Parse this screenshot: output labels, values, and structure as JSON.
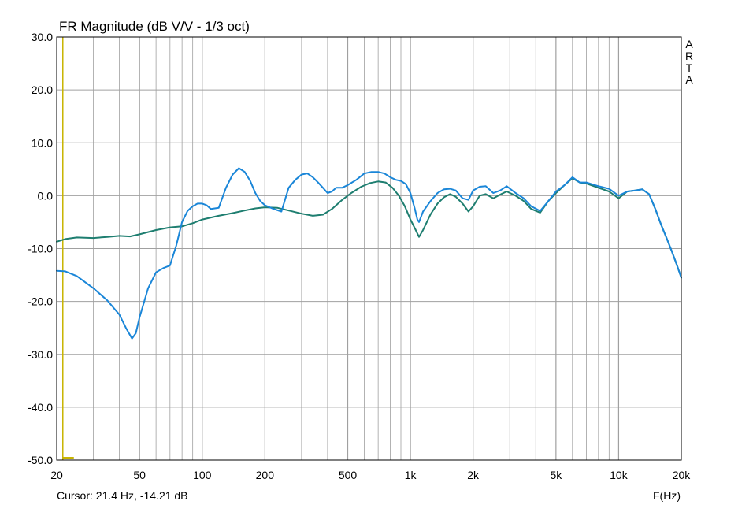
{
  "chart_data": {
    "type": "line",
    "title": "FR Magnitude (dB V/V - 1/3 oct)",
    "xlabel": "F(Hz)",
    "ylabel": "",
    "x_scale": "log",
    "xlim": [
      20,
      20000
    ],
    "ylim": [
      -50,
      30
    ],
    "x_ticks": [
      20,
      50,
      100,
      200,
      500,
      1000,
      2000,
      5000,
      10000,
      20000
    ],
    "x_tick_labels": [
      "20",
      "50",
      "100",
      "200",
      "500",
      "1k",
      "2k",
      "5k",
      "10k",
      "20k"
    ],
    "y_ticks": [
      30,
      20,
      10,
      0,
      -10,
      -20,
      -30,
      -40,
      -50
    ],
    "y_tick_labels": [
      "30.0",
      "20.0",
      "10.0",
      "0.0",
      "-10.0",
      "-20.0",
      "-30.0",
      "-40.0",
      "-50.0"
    ],
    "grid": true,
    "brand_letters": [
      "A",
      "R",
      "T",
      "A"
    ],
    "cursor_text": "Cursor: 21.4 Hz, -14.21 dB",
    "cursor_frequency": 21.4,
    "colors": {
      "grid": "#a0a0a0",
      "cursor": "#c8b400",
      "axis": "#000000"
    },
    "series": [
      {
        "color": "#1e7e70",
        "x": [
          20,
          22,
          25,
          30,
          35,
          40,
          45,
          50,
          60,
          70,
          80,
          90,
          100,
          120,
          140,
          160,
          180,
          200,
          230,
          260,
          300,
          340,
          380,
          420,
          470,
          520,
          580,
          640,
          700,
          760,
          820,
          880,
          940,
          1000,
          1060,
          1100,
          1150,
          1250,
          1350,
          1450,
          1550,
          1650,
          1780,
          1900,
          2000,
          2150,
          2300,
          2500,
          2700,
          2900,
          3200,
          3500,
          3800,
          4200,
          4600,
          5000,
          5500,
          6000,
          6500,
          7000,
          8000,
          9000,
          10000,
          11000,
          12000,
          13000,
          14000,
          15000,
          16000,
          17000,
          18000,
          19000,
          20000
        ],
        "y": [
          -8.7,
          -8.2,
          -7.9,
          -8.0,
          -7.8,
          -7.6,
          -7.7,
          -7.3,
          -6.5,
          -6.0,
          -5.8,
          -5.2,
          -4.5,
          -3.8,
          -3.3,
          -2.8,
          -2.4,
          -2.2,
          -2.3,
          -2.8,
          -3.4,
          -3.8,
          -3.6,
          -2.5,
          -0.8,
          0.5,
          1.7,
          2.4,
          2.7,
          2.5,
          1.5,
          0.0,
          -2.0,
          -4.5,
          -6.5,
          -7.8,
          -6.5,
          -3.5,
          -1.5,
          -0.3,
          0.3,
          -0.2,
          -1.5,
          -3.0,
          -2.0,
          0.0,
          0.3,
          -0.5,
          0.2,
          0.8,
          0.0,
          -1.0,
          -2.5,
          -3.2,
          -1.0,
          0.5,
          2.0,
          3.3,
          2.5,
          2.3,
          1.5,
          0.8,
          -0.5,
          0.8,
          1.0,
          1.2,
          0.3,
          -2.5,
          -5.5,
          -8.0,
          -10.5,
          -13.0,
          -15.5
        ]
      },
      {
        "color": "#1a86d8",
        "x": [
          20,
          22,
          25,
          30,
          35,
          40,
          43,
          46,
          48,
          50,
          55,
          60,
          65,
          70,
          75,
          80,
          85,
          90,
          95,
          100,
          105,
          110,
          120,
          130,
          140,
          150,
          160,
          170,
          180,
          190,
          200,
          220,
          240,
          260,
          280,
          300,
          320,
          340,
          360,
          380,
          400,
          420,
          440,
          470,
          500,
          550,
          600,
          650,
          700,
          750,
          800,
          850,
          900,
          950,
          1000,
          1050,
          1080,
          1100,
          1150,
          1250,
          1350,
          1450,
          1550,
          1650,
          1780,
          1900,
          2000,
          2150,
          2300,
          2500,
          2700,
          2900,
          3200,
          3500,
          3800,
          4200,
          4600,
          5000,
          5500,
          6000,
          6500,
          7000,
          8000,
          9000,
          10000,
          11000,
          12000,
          13000,
          14000,
          15000,
          16000,
          17000,
          18000,
          19000,
          20000
        ],
        "y": [
          -14.2,
          -14.3,
          -15.2,
          -17.5,
          -19.8,
          -22.5,
          -25.0,
          -27.0,
          -26.0,
          -23.0,
          -17.5,
          -14.5,
          -13.7,
          -13.2,
          -9.5,
          -5.0,
          -2.9,
          -2.0,
          -1.5,
          -1.5,
          -1.8,
          -2.5,
          -2.3,
          1.5,
          4.0,
          5.2,
          4.5,
          2.8,
          0.5,
          -1.0,
          -1.8,
          -2.5,
          -3.0,
          1.5,
          3.0,
          4.0,
          4.2,
          3.5,
          2.5,
          1.5,
          0.5,
          0.8,
          1.5,
          1.5,
          2.0,
          3.0,
          4.2,
          4.5,
          4.5,
          4.2,
          3.5,
          3.0,
          2.8,
          2.2,
          0.5,
          -2.5,
          -4.5,
          -5.0,
          -3.0,
          -1.0,
          0.5,
          1.2,
          1.3,
          1.0,
          -0.5,
          -0.8,
          1.0,
          1.7,
          1.8,
          0.5,
          1.0,
          1.8,
          0.5,
          -0.5,
          -2.0,
          -2.9,
          -1.0,
          0.8,
          2.0,
          3.5,
          2.5,
          2.5,
          1.8,
          1.3,
          0.0,
          0.8,
          1.0,
          1.2,
          0.3,
          -2.5,
          -5.5,
          -8.0,
          -10.5,
          -13.0,
          -15.5
        ]
      }
    ]
  }
}
